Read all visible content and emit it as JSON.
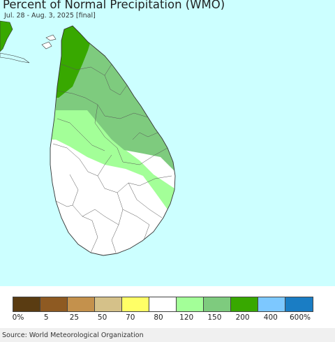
{
  "header": {
    "title": "Percent of Normal Precipitation (WMO)",
    "subtitle": "Jul. 28 - Aug. 3, 2025 [final]"
  },
  "colors": {
    "ocean": "#ccffff",
    "land_white": "#ffffff",
    "light_green": "#a3ff98",
    "medium_green": "#7ecb7e",
    "dark_green": "#38a800",
    "border": "#444444"
  },
  "legend": {
    "swatches": [
      {
        "color": "#5a3c12"
      },
      {
        "color": "#8e5a22"
      },
      {
        "color": "#c4914c"
      },
      {
        "color": "#d5c189"
      },
      {
        "color": "#ffff66"
      },
      {
        "color": "#ffffff"
      },
      {
        "color": "#a3ff98"
      },
      {
        "color": "#7ecb7e"
      },
      {
        "color": "#38a800"
      },
      {
        "color": "#7dc8ff"
      },
      {
        "color": "#1a7dc4"
      }
    ],
    "labels": [
      "0%",
      "5",
      "25",
      "50",
      "70",
      "80",
      "120",
      "150",
      "200",
      "400",
      "600%"
    ]
  },
  "footer": {
    "source": "Source: World Meteorological Organization"
  }
}
